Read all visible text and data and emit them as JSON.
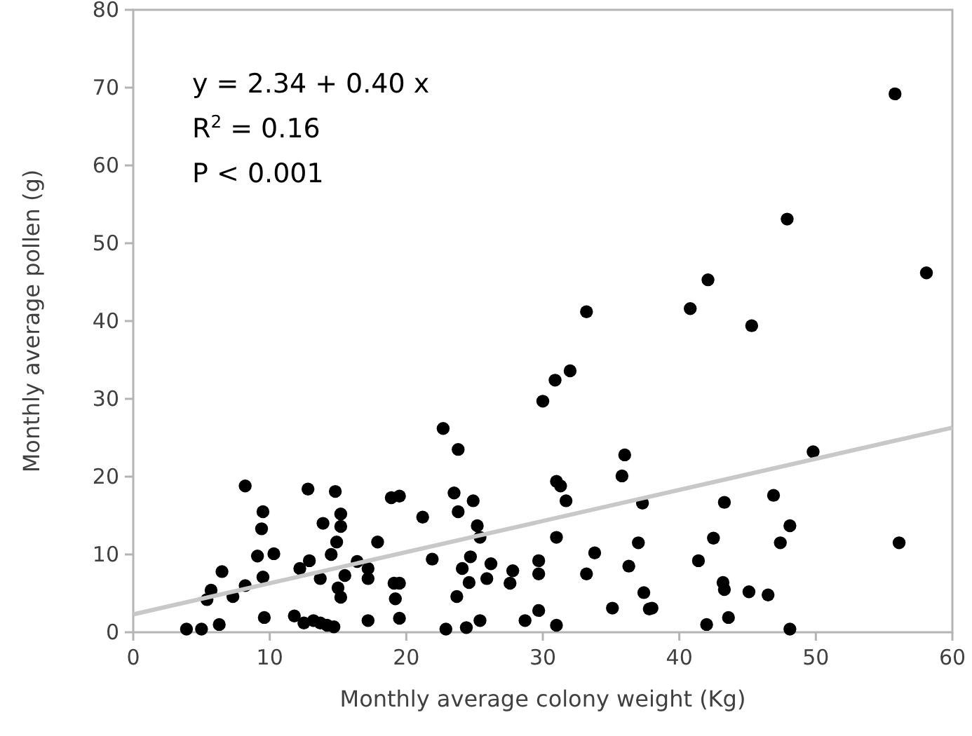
{
  "chart_data": {
    "type": "scatter",
    "xlabel": "Monthly average colony weight (Kg)",
    "ylabel": "Monthly average pollen (g)",
    "xlim": [
      0,
      60
    ],
    "xticks": [
      0,
      10,
      20,
      30,
      40,
      50,
      60
    ],
    "ylim": [
      0,
      80
    ],
    "yticks": [
      0,
      10,
      20,
      30,
      40,
      50,
      60,
      70,
      80
    ],
    "grid": false,
    "annotations": [
      "y = 2.34 + 0.40 x",
      "R$^{2}$ = 0.16",
      "P < 0.001"
    ],
    "series": [
      {
        "color": "#000000",
        "marker": "circle",
        "x": [
          55.8,
          47.9,
          58.1,
          42.1,
          40.8,
          45.3,
          33.2,
          32.0,
          30.9,
          30.0,
          22.7,
          8.2,
          12.8,
          14.8,
          9.5,
          15.2,
          9.4,
          15.2,
          13.9,
          14.9,
          17.9,
          10.3,
          9.1,
          14.5,
          12.9,
          12.2,
          16.4,
          17.2,
          6.5,
          9.5,
          15.5,
          13.7,
          17.2,
          5.7,
          8.2,
          7.3,
          5.4,
          15.0,
          15.2,
          18.9,
          19.5,
          19.1,
          19.5,
          19.2,
          19.5,
          9.6,
          11.8,
          12.5,
          13.2,
          13.7,
          14.2,
          14.7,
          17.2,
          6.3,
          3.9,
          5.0,
          23.8,
          23.5,
          24.9,
          23.8,
          21.2,
          25.2,
          25.4,
          31.0,
          31.3,
          31.7,
          31.0,
          36.0,
          35.8,
          37.3,
          37.0,
          33.8,
          21.9,
          24.7,
          24.1,
          26.2,
          27.8,
          27.6,
          25.9,
          24.6,
          29.7,
          29.7,
          33.2,
          36.3,
          23.7,
          37.4,
          37.8,
          38.0,
          35.1,
          29.7,
          28.7,
          25.4,
          24.4,
          22.9,
          31.0,
          49.8,
          46.9,
          43.3,
          48.1,
          42.5,
          47.4,
          56.1,
          41.4,
          43.2,
          43.3,
          45.1,
          46.5,
          43.6,
          42.0,
          48.1
        ],
        "values": [
          69.2,
          53.1,
          46.2,
          45.3,
          41.6,
          39.4,
          41.2,
          33.6,
          32.4,
          29.7,
          26.2,
          18.8,
          18.4,
          18.1,
          15.5,
          15.2,
          13.3,
          13.6,
          14.0,
          11.6,
          11.6,
          10.1,
          9.8,
          10.0,
          9.2,
          8.2,
          9.1,
          8.2,
          7.8,
          7.1,
          7.3,
          6.9,
          6.9,
          5.4,
          6.0,
          4.6,
          4.2,
          5.7,
          4.5,
          17.3,
          17.5,
          6.3,
          6.3,
          4.3,
          1.8,
          1.9,
          2.1,
          1.2,
          1.5,
          1.2,
          0.9,
          0.7,
          1.5,
          1.0,
          0.4,
          0.4,
          23.5,
          17.9,
          16.9,
          15.5,
          14.8,
          13.7,
          12.2,
          19.4,
          18.8,
          16.9,
          12.2,
          22.8,
          20.1,
          16.6,
          11.5,
          10.2,
          9.4,
          9.7,
          8.2,
          8.8,
          7.9,
          6.3,
          6.9,
          6.4,
          9.2,
          7.5,
          7.5,
          8.5,
          4.6,
          5.1,
          3.0,
          3.1,
          3.1,
          2.8,
          1.5,
          1.5,
          0.6,
          0.4,
          0.9,
          23.2,
          17.6,
          16.7,
          13.7,
          12.1,
          11.5,
          11.5,
          9.2,
          6.4,
          5.5,
          5.2,
          4.8,
          1.9,
          1.0,
          0.4
        ]
      },
      {
        "type": "line",
        "color": "#c8c8c8",
        "x": [
          0,
          60
        ],
        "values": [
          2.3,
          26.3
        ]
      }
    ]
  }
}
